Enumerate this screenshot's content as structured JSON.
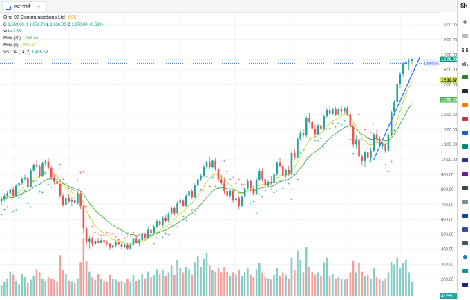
{
  "tab": {
    "label": "PAYTM",
    "new_tab": "+"
  },
  "legend": {
    "symbol": "One 97 Communications Ltd",
    "exchange": "NSE",
    "ohlc": {
      "o_label": "O",
      "o": "1,659.60",
      "h_label": "H",
      "h": "1,676.70",
      "l_label": "L",
      "l": "1,636.00",
      "c_label": "C",
      "c": "1,670.00",
      "change": "+0.63%"
    },
    "vol": {
      "label": "Vol",
      "value": "41.55L"
    },
    "ema20": {
      "label": "EMA (20)",
      "value": "1,398.60"
    },
    "ema9": {
      "label": "EMA (9)",
      "value": "1,530.37"
    },
    "vstop": {
      "label": "VSTOP (14, 2)",
      "value": "1,466.69"
    }
  },
  "price_axis": {
    "ticks": [
      "1,900.00",
      "1,800.00",
      "1,700.00",
      "1,600.00",
      "1,500.00",
      "1,400.00",
      "1,300.00",
      "1,200.00",
      "1,100.00",
      "1,000.00",
      "900.00",
      "800.00",
      "700.00",
      "600.00",
      "500.00",
      "400.00",
      "300.00",
      "200.00"
    ],
    "labels": {
      "last_price": "1,670.00",
      "line_price": "1,644.55",
      "ema9": "1,530.37",
      "ema20": "1,398.60",
      "volume": "41.55L"
    }
  },
  "sidebar": {
    "title": "Sh"
  },
  "colors": {
    "up": "#26a69a",
    "down": "#ef5350",
    "ema20": "#4caf50",
    "ema9": "#cddc39",
    "vstop_up": "#26a69a",
    "vstop_down": "#ef5350",
    "trend": "#2962ff",
    "last_price_bg": "#089981",
    "ema9_bg": "#d4e157",
    "ema20_bg": "#4caf50"
  },
  "chart_data": {
    "type": "candlestick",
    "ylim": [
      200,
      1900
    ],
    "y_ticks": [
      1900,
      1800,
      1700,
      1600,
      1500,
      1400,
      1300,
      1200,
      1100,
      1000,
      900,
      800,
      700,
      600,
      500,
      400,
      300,
      200
    ],
    "lines": {
      "horizontal": 1644.55,
      "trend_start": 1000,
      "trend_end": 1690
    },
    "candles_ohlc": [
      [
        720,
        752,
        698,
        735
      ],
      [
        735,
        768,
        720,
        758
      ],
      [
        758,
        790,
        742,
        776
      ],
      [
        776,
        812,
        760,
        798
      ],
      [
        798,
        820,
        745,
        760
      ],
      [
        760,
        835,
        750,
        826
      ],
      [
        826,
        858,
        808,
        842
      ],
      [
        842,
        884,
        830,
        870
      ],
      [
        870,
        900,
        855,
        880
      ],
      [
        880,
        895,
        805,
        818
      ],
      [
        818,
        940,
        812,
        928
      ],
      [
        928,
        975,
        918,
        962
      ],
      [
        962,
        998,
        944,
        956
      ],
      [
        956,
        970,
        878,
        892
      ],
      [
        892,
        985,
        884,
        975
      ],
      [
        975,
        1000,
        958,
        988
      ],
      [
        988,
        1010,
        930,
        945
      ],
      [
        945,
        960,
        870,
        882
      ],
      [
        882,
        905,
        835,
        856
      ],
      [
        856,
        880,
        820,
        838
      ],
      [
        838,
        850,
        740,
        760
      ],
      [
        760,
        772,
        680,
        695
      ],
      [
        695,
        760,
        684,
        742
      ],
      [
        742,
        770,
        710,
        720
      ],
      [
        720,
        748,
        690,
        730
      ],
      [
        730,
        752,
        700,
        712
      ],
      [
        712,
        790,
        700,
        775
      ],
      [
        775,
        788,
        670,
        690
      ],
      [
        690,
        700,
        500,
        540
      ],
      [
        540,
        555,
        430,
        450
      ],
      [
        450,
        490,
        405,
        470
      ],
      [
        470,
        482,
        420,
        435
      ],
      [
        435,
        470,
        428,
        458
      ],
      [
        458,
        475,
        438,
        445
      ],
      [
        445,
        472,
        440,
        462
      ],
      [
        462,
        472,
        440,
        448
      ],
      [
        448,
        462,
        420,
        438
      ],
      [
        438,
        445,
        395,
        410
      ],
      [
        410,
        432,
        380,
        425
      ],
      [
        425,
        455,
        415,
        448
      ],
      [
        448,
        460,
        430,
        435
      ],
      [
        435,
        448,
        398,
        415
      ],
      [
        415,
        440,
        405,
        432
      ],
      [
        432,
        440,
        395,
        405
      ],
      [
        405,
        440,
        395,
        430
      ],
      [
        430,
        478,
        422,
        470
      ],
      [
        470,
        480,
        438,
        445
      ],
      [
        445,
        470,
        420,
        462
      ],
      [
        462,
        510,
        455,
        500
      ],
      [
        500,
        512,
        462,
        472
      ],
      [
        472,
        545,
        468,
        530
      ],
      [
        530,
        545,
        498,
        508
      ],
      [
        508,
        560,
        500,
        552
      ],
      [
        552,
        600,
        540,
        588
      ],
      [
        588,
        600,
        548,
        560
      ],
      [
        560,
        620,
        552,
        612
      ],
      [
        612,
        630,
        575,
        588
      ],
      [
        588,
        655,
        580,
        640
      ],
      [
        640,
        690,
        630,
        676
      ],
      [
        676,
        688,
        628,
        642
      ],
      [
        642,
        720,
        636,
        710
      ],
      [
        710,
        748,
        695,
        725
      ],
      [
        725,
        735,
        680,
        690
      ],
      [
        690,
        770,
        684,
        760
      ],
      [
        760,
        800,
        745,
        788
      ],
      [
        788,
        800,
        735,
        748
      ],
      [
        748,
        840,
        740,
        826
      ],
      [
        826,
        880,
        815,
        868
      ],
      [
        868,
        905,
        856,
        892
      ],
      [
        892,
        965,
        880,
        952
      ],
      [
        952,
        992,
        940,
        984
      ],
      [
        984,
        1020,
        935,
        950
      ],
      [
        950,
        1000,
        942,
        992
      ],
      [
        992,
        1010,
        920,
        935
      ],
      [
        935,
        945,
        850,
        868
      ],
      [
        868,
        900,
        830,
        842
      ],
      [
        842,
        880,
        772,
        790
      ],
      [
        790,
        820,
        735,
        760
      ],
      [
        760,
        800,
        742,
        788
      ],
      [
        788,
        795,
        712,
        725
      ],
      [
        725,
        760,
        700,
        740
      ],
      [
        740,
        760,
        666,
        690
      ],
      [
        690,
        760,
        684,
        752
      ],
      [
        752,
        820,
        744,
        808
      ],
      [
        808,
        870,
        800,
        856
      ],
      [
        856,
        866,
        790,
        810
      ],
      [
        810,
        830,
        760,
        772
      ],
      [
        772,
        880,
        764,
        864
      ],
      [
        864,
        935,
        856,
        920
      ],
      [
        920,
        940,
        852,
        868
      ],
      [
        868,
        875,
        808,
        826
      ],
      [
        826,
        860,
        812,
        850
      ],
      [
        850,
        890,
        830,
        842
      ],
      [
        842,
        910,
        836,
        902
      ],
      [
        902,
        990,
        892,
        978
      ],
      [
        978,
        1010,
        945,
        958
      ],
      [
        958,
        970,
        880,
        895
      ],
      [
        895,
        940,
        880,
        930
      ],
      [
        930,
        960,
        888,
        902
      ],
      [
        902,
        1060,
        896,
        1045
      ],
      [
        1045,
        1075,
        1000,
        1015
      ],
      [
        1015,
        1150,
        1008,
        1138
      ],
      [
        1138,
        1195,
        1125,
        1180
      ],
      [
        1180,
        1205,
        1145,
        1160
      ],
      [
        1160,
        1290,
        1150,
        1278
      ],
      [
        1278,
        1310,
        1240,
        1255
      ],
      [
        1255,
        1275,
        1190,
        1208
      ],
      [
        1208,
        1230,
        1150,
        1168
      ],
      [
        1168,
        1240,
        1160,
        1228
      ],
      [
        1228,
        1265,
        1192,
        1205
      ],
      [
        1205,
        1302,
        1195,
        1290
      ],
      [
        1290,
        1345,
        1278,
        1332
      ],
      [
        1332,
        1355,
        1290,
        1305
      ],
      [
        1305,
        1345,
        1296,
        1336
      ],
      [
        1336,
        1352,
        1290,
        1300
      ],
      [
        1300,
        1345,
        1294,
        1340
      ],
      [
        1340,
        1356,
        1300,
        1320
      ],
      [
        1320,
        1350,
        1306,
        1344
      ],
      [
        1344,
        1355,
        1290,
        1302
      ],
      [
        1302,
        1310,
        1200,
        1225
      ],
      [
        1225,
        1240,
        1080,
        1100
      ],
      [
        1100,
        1160,
        1070,
        1135
      ],
      [
        1135,
        1150,
        1000,
        1020
      ],
      [
        1020,
        1035,
        960,
        990
      ],
      [
        990,
        1060,
        950,
        1050
      ],
      [
        1050,
        1085,
        1000,
        1010
      ],
      [
        1010,
        1080,
        980,
        1060
      ],
      [
        1060,
        1180,
        1050,
        1168
      ],
      [
        1168,
        1200,
        1120,
        1140
      ],
      [
        1140,
        1155,
        1080,
        1092
      ],
      [
        1092,
        1120,
        1068,
        1100
      ],
      [
        1100,
        1110,
        1040,
        1060
      ],
      [
        1060,
        1180,
        1052,
        1165
      ],
      [
        1165,
        1330,
        1156,
        1318
      ],
      [
        1318,
        1400,
        1300,
        1385
      ],
      [
        1385,
        1515,
        1375,
        1505
      ],
      [
        1505,
        1585,
        1480,
        1572
      ],
      [
        1572,
        1655,
        1550,
        1640
      ],
      [
        1640,
        1735,
        1625,
        1652
      ],
      [
        1652,
        1676,
        1600,
        1659
      ],
      [
        1659.6,
        1676.7,
        1636,
        1670
      ]
    ],
    "volume_ratio": [
      0.18,
      0.24,
      0.3,
      0.42,
      0.36,
      0.26,
      0.2,
      0.38,
      0.32,
      0.22,
      0.28,
      0.34,
      0.46,
      0.4,
      0.3,
      0.26,
      0.32,
      0.3,
      0.28,
      0.24,
      0.7,
      0.44,
      0.38,
      0.26,
      0.24,
      0.22,
      0.3,
      0.58,
      1.0,
      0.6,
      0.42,
      0.32,
      0.28,
      0.38,
      0.3,
      0.26,
      0.24,
      0.36,
      0.3,
      0.28,
      0.24,
      0.26,
      0.22,
      0.3,
      0.24,
      0.36,
      0.26,
      0.28,
      0.38,
      0.3,
      0.42,
      0.32,
      0.36,
      0.46,
      0.38,
      0.44,
      0.34,
      0.4,
      0.52,
      0.36,
      0.62,
      0.48,
      0.4,
      0.5,
      0.46,
      0.36,
      0.58,
      0.68,
      0.5,
      0.64,
      0.74,
      0.52,
      0.44,
      0.42,
      0.48,
      0.4,
      0.5,
      0.42,
      0.34,
      0.4,
      0.36,
      0.44,
      0.34,
      0.4,
      0.48,
      0.36,
      0.32,
      0.46,
      0.56,
      0.4,
      0.32,
      0.3,
      0.28,
      0.36,
      0.48,
      0.34,
      0.4,
      0.36,
      0.3,
      0.66,
      0.44,
      0.78,
      0.62,
      0.4,
      0.84,
      0.5,
      0.42,
      0.36,
      0.4,
      0.34,
      0.58,
      0.66,
      0.34,
      0.38,
      0.3,
      0.32,
      0.3,
      0.28,
      0.3,
      0.4,
      0.6,
      0.4,
      0.56,
      0.42,
      0.34,
      0.36,
      0.3,
      0.48,
      0.32,
      0.28,
      0.26,
      0.3,
      0.4,
      0.58,
      0.54,
      0.66,
      0.48,
      0.56,
      0.62,
      0.4,
      0.24
    ]
  }
}
